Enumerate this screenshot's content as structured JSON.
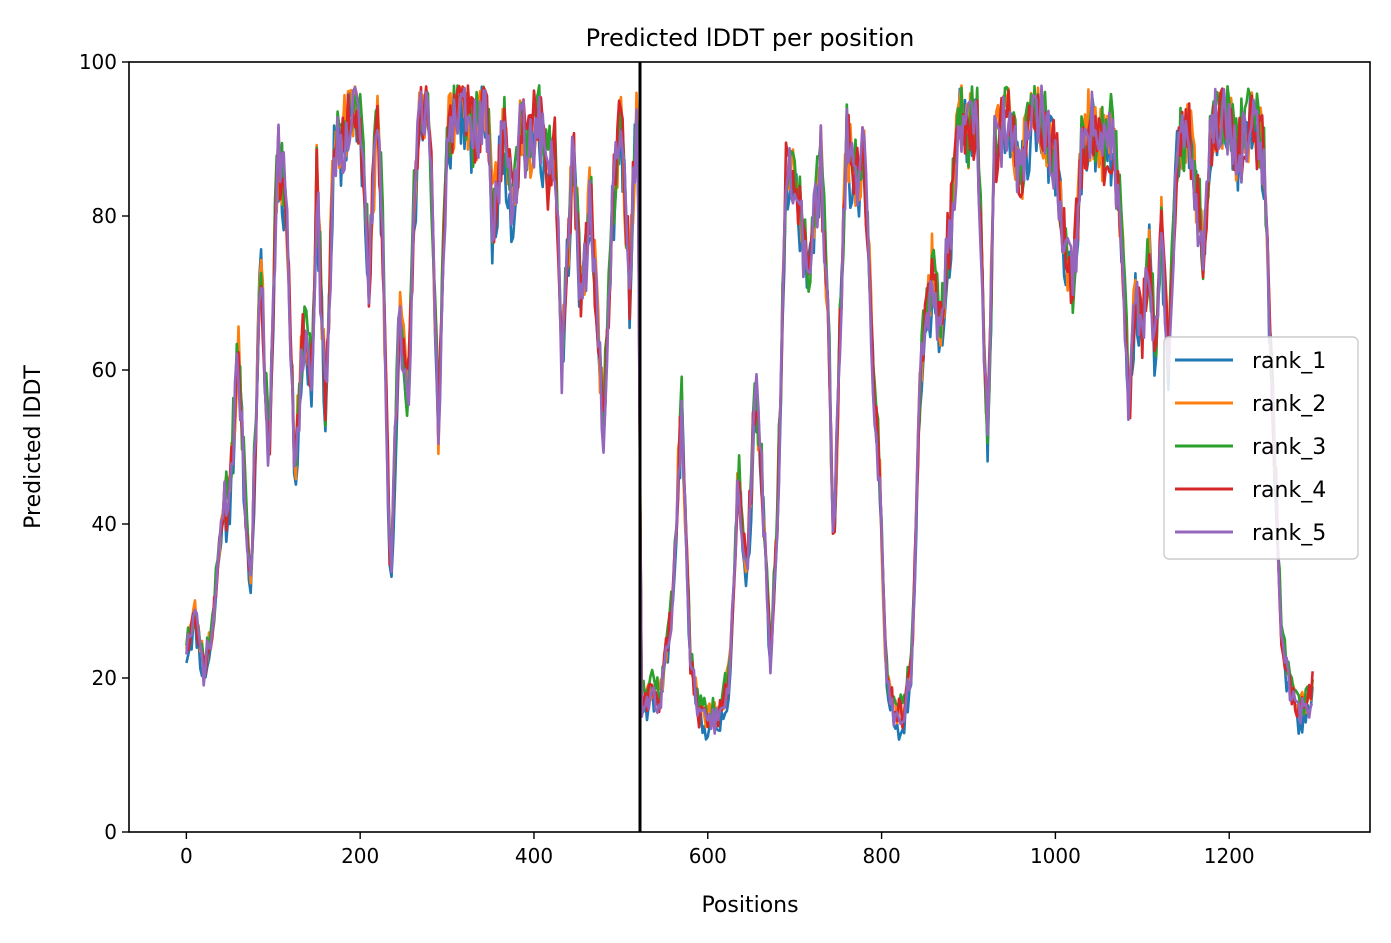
{
  "chart_data": {
    "type": "line",
    "title": "Predicted lDDT per position",
    "xlabel": "Positions",
    "ylabel": "Predicted lDDT",
    "xlim": [
      -66,
      1362
    ],
    "ylim": [
      0,
      100
    ],
    "xticks": [
      0,
      200,
      400,
      600,
      800,
      1000,
      1200
    ],
    "yticks": [
      0,
      20,
      40,
      60,
      80,
      100
    ],
    "vline_x": 522,
    "grid": false,
    "legend_position": "center-right",
    "colors": [
      "#1f77b4",
      "#ff7f0e",
      "#2ca02c",
      "#d62728",
      "#9467bd"
    ],
    "base_profile": [
      [
        0,
        24
      ],
      [
        10,
        28
      ],
      [
        20,
        21
      ],
      [
        30,
        26
      ],
      [
        40,
        40
      ],
      [
        50,
        44
      ],
      [
        60,
        62
      ],
      [
        70,
        38
      ],
      [
        75,
        32
      ],
      [
        85,
        75
      ],
      [
        95,
        48
      ],
      [
        105,
        88
      ],
      [
        115,
        82
      ],
      [
        125,
        47
      ],
      [
        135,
        65
      ],
      [
        145,
        58
      ],
      [
        150,
        84
      ],
      [
        160,
        55
      ],
      [
        170,
        88
      ],
      [
        180,
        90
      ],
      [
        190,
        94
      ],
      [
        200,
        93
      ],
      [
        210,
        72
      ],
      [
        220,
        93
      ],
      [
        225,
        80
      ],
      [
        235,
        31
      ],
      [
        245,
        68
      ],
      [
        255,
        55
      ],
      [
        262,
        80
      ],
      [
        270,
        95
      ],
      [
        280,
        92
      ],
      [
        290,
        52
      ],
      [
        300,
        90
      ],
      [
        315,
        95
      ],
      [
        330,
        90
      ],
      [
        345,
        95
      ],
      [
        352,
        79
      ],
      [
        365,
        91
      ],
      [
        375,
        80
      ],
      [
        385,
        92
      ],
      [
        395,
        88
      ],
      [
        405,
        94
      ],
      [
        415,
        85
      ],
      [
        425,
        88
      ],
      [
        432,
        61
      ],
      [
        445,
        88
      ],
      [
        455,
        68
      ],
      [
        465,
        82
      ],
      [
        475,
        62
      ],
      [
        480,
        52
      ],
      [
        490,
        80
      ],
      [
        500,
        93
      ],
      [
        510,
        70
      ],
      [
        518,
        94
      ],
      [
        521,
        80
      ],
      [
        523,
        16
      ],
      [
        535,
        18
      ],
      [
        545,
        17
      ],
      [
        560,
        30
      ],
      [
        570,
        55
      ],
      [
        580,
        22
      ],
      [
        590,
        15
      ],
      [
        600,
        14
      ],
      [
        615,
        15
      ],
      [
        625,
        20
      ],
      [
        635,
        45
      ],
      [
        645,
        33
      ],
      [
        655,
        58
      ],
      [
        665,
        40
      ],
      [
        672,
        22
      ],
      [
        680,
        40
      ],
      [
        690,
        85
      ],
      [
        705,
        82
      ],
      [
        715,
        70
      ],
      [
        730,
        88
      ],
      [
        740,
        60
      ],
      [
        745,
        35
      ],
      [
        752,
        65
      ],
      [
        760,
        89
      ],
      [
        770,
        84
      ],
      [
        780,
        88
      ],
      [
        790,
        60
      ],
      [
        798,
        45
      ],
      [
        805,
        20
      ],
      [
        815,
        15
      ],
      [
        825,
        15
      ],
      [
        835,
        22
      ],
      [
        845,
        60
      ],
      [
        858,
        72
      ],
      [
        868,
        65
      ],
      [
        880,
        80
      ],
      [
        890,
        94
      ],
      [
        900,
        90
      ],
      [
        910,
        93
      ],
      [
        922,
        50
      ],
      [
        930,
        88
      ],
      [
        945,
        92
      ],
      [
        960,
        85
      ],
      [
        975,
        95
      ],
      [
        990,
        90
      ],
      [
        1000,
        88
      ],
      [
        1012,
        75
      ],
      [
        1020,
        70
      ],
      [
        1030,
        88
      ],
      [
        1042,
        92
      ],
      [
        1055,
        88
      ],
      [
        1065,
        90
      ],
      [
        1075,
        80
      ],
      [
        1085,
        55
      ],
      [
        1092,
        70
      ],
      [
        1100,
        65
      ],
      [
        1108,
        75
      ],
      [
        1115,
        62
      ],
      [
        1122,
        78
      ],
      [
        1130,
        60
      ],
      [
        1140,
        88
      ],
      [
        1155,
        90
      ],
      [
        1170,
        75
      ],
      [
        1180,
        91
      ],
      [
        1195,
        93
      ],
      [
        1210,
        88
      ],
      [
        1225,
        92
      ],
      [
        1240,
        88
      ],
      [
        1250,
        55
      ],
      [
        1260,
        25
      ],
      [
        1270,
        18
      ],
      [
        1280,
        15
      ],
      [
        1290,
        16
      ],
      [
        1297,
        19
      ]
    ],
    "series": [
      {
        "name": "rank_1",
        "color": "#1f77b4",
        "seed": 11,
        "shift": -1.0
      },
      {
        "name": "rank_2",
        "color": "#ff7f0e",
        "seed": 23,
        "shift": 0.8
      },
      {
        "name": "rank_3",
        "color": "#2ca02c",
        "seed": 37,
        "shift": 1.2
      },
      {
        "name": "rank_4",
        "color": "#d62728",
        "seed": 53,
        "shift": 0.4
      },
      {
        "name": "rank_5",
        "color": "#9467bd",
        "seed": 71,
        "shift": 0.0
      }
    ]
  }
}
